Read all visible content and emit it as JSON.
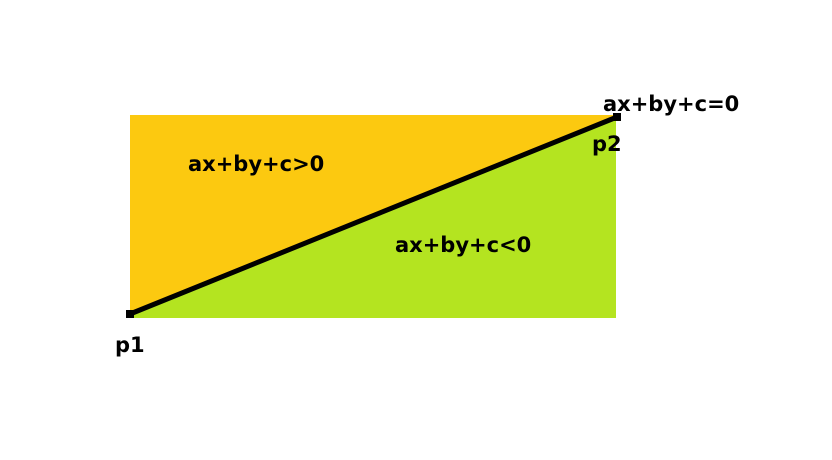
{
  "colors": {
    "background": "#ffffff",
    "upper_region": "#fcc910",
    "lower_region": "#b4e420",
    "line": "#000000"
  },
  "labels": {
    "upper_region": "ax+by+c>0",
    "lower_region": "ax+by+c<0",
    "line_equation": "ax+by+c=0",
    "point1": "p1",
    "point2": "p2"
  }
}
